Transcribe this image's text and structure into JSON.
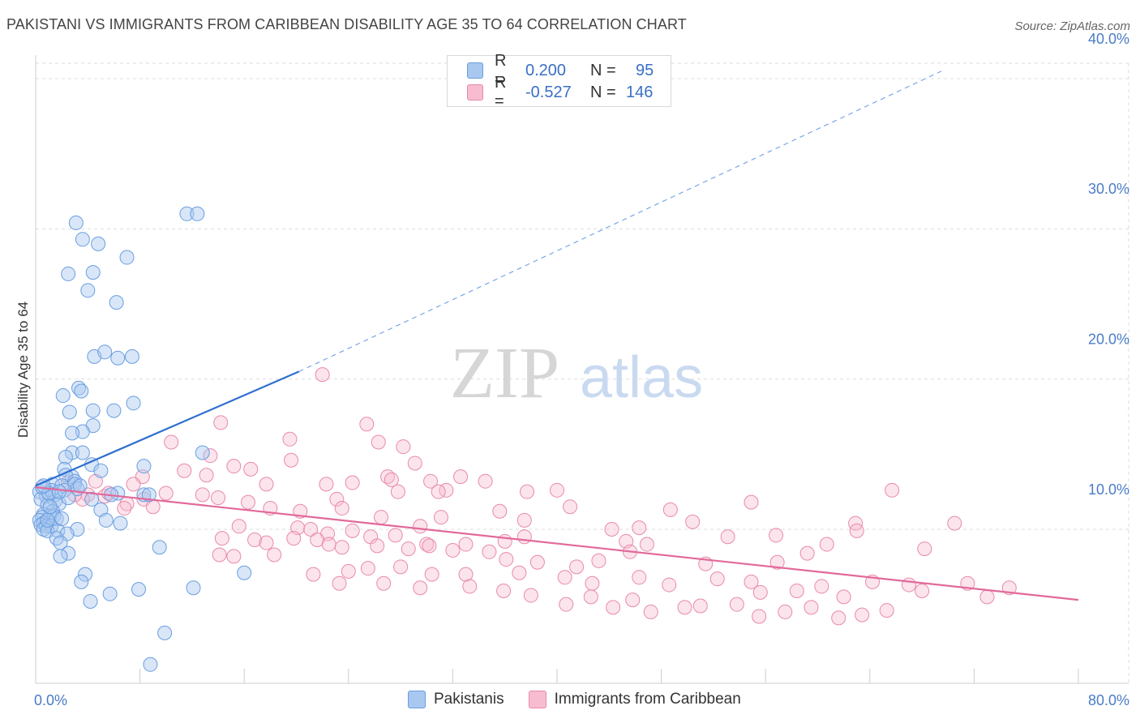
{
  "title": "PAKISTANI VS IMMIGRANTS FROM CARIBBEAN DISABILITY AGE 35 TO 64 CORRELATION CHART",
  "source": "Source: ZipAtlas.com",
  "watermark": {
    "zip": "ZIP",
    "atlas": "atlas"
  },
  "legend_top": [
    {
      "r_label": "R =",
      "r_value": "0.200",
      "n_label": "N =",
      "n_value": "95",
      "color": "#a8c8f0",
      "border": "#6a9ee0"
    },
    {
      "r_label": "R =",
      "r_value": "-0.527",
      "n_label": "N =",
      "n_value": "146",
      "color": "#f7bcd0",
      "border": "#e88aaa"
    }
  ],
  "legend_bottom": [
    {
      "label": "Pakistanis",
      "color": "#a8c8f0",
      "border": "#6a9ee0"
    },
    {
      "label": "Immigrants from Caribbean",
      "color": "#f7bcd0",
      "border": "#e88aaa"
    }
  ],
  "chart_data": {
    "type": "scatter",
    "title": "PAKISTANI VS IMMIGRANTS FROM CARIBBEAN DISABILITY AGE 35 TO 64 CORRELATION CHART",
    "xlabel": "",
    "ylabel": "Disability Age 35 to 64",
    "xlim": [
      0,
      80
    ],
    "ylim": [
      0,
      40
    ],
    "x_ticks": [
      0,
      80
    ],
    "x_tick_labels": [
      "0.0%",
      "80.0%"
    ],
    "y_ticks": [
      10,
      20,
      30,
      40
    ],
    "y_tick_labels": [
      "10.0%",
      "20.0%",
      "30.0%",
      "40.0%"
    ],
    "grid": true,
    "series": [
      {
        "name": "Pakistanis",
        "color": "#6a9ee0",
        "trend": {
          "x0": 0,
          "y0": 12.9,
          "x1": 20.2,
          "y1": 20.5,
          "dashed_to_x": 69.5,
          "dashed_to_y": 40.5
        },
        "points": [
          [
            3.1,
            30.4
          ],
          [
            3.6,
            29.3
          ],
          [
            4.8,
            29.0
          ],
          [
            4.4,
            27.1
          ],
          [
            2.5,
            27.0
          ],
          [
            7.0,
            28.1
          ],
          [
            11.6,
            31.0
          ],
          [
            12.4,
            31.0
          ],
          [
            4.0,
            25.9
          ],
          [
            6.2,
            25.1
          ],
          [
            4.5,
            21.5
          ],
          [
            5.3,
            21.8
          ],
          [
            6.3,
            21.4
          ],
          [
            7.4,
            21.5
          ],
          [
            3.3,
            19.4
          ],
          [
            3.5,
            19.2
          ],
          [
            2.1,
            18.9
          ],
          [
            2.6,
            17.8
          ],
          [
            4.4,
            17.9
          ],
          [
            6.0,
            17.9
          ],
          [
            7.5,
            18.4
          ],
          [
            4.4,
            16.9
          ],
          [
            3.6,
            16.5
          ],
          [
            2.8,
            16.4
          ],
          [
            2.8,
            15.1
          ],
          [
            3.6,
            15.1
          ],
          [
            2.3,
            14.8
          ],
          [
            12.8,
            15.1
          ],
          [
            8.3,
            14.2
          ],
          [
            2.2,
            14.0
          ],
          [
            2.8,
            13.5
          ],
          [
            2.3,
            13.6
          ],
          [
            3.0,
            13.2
          ],
          [
            4.3,
            14.3
          ],
          [
            5.0,
            13.9
          ],
          [
            1.3,
            13.0
          ],
          [
            2.0,
            12.9
          ],
          [
            3.0,
            13.0
          ],
          [
            3.2,
            12.7
          ],
          [
            1.2,
            12.6
          ],
          [
            1.5,
            12.3
          ],
          [
            0.8,
            12.2
          ],
          [
            0.3,
            12.5
          ],
          [
            0.4,
            12.0
          ],
          [
            1.5,
            11.9
          ],
          [
            1.8,
            11.7
          ],
          [
            0.9,
            11.6
          ],
          [
            1.3,
            11.2
          ],
          [
            6.3,
            12.4
          ],
          [
            8.3,
            12.3
          ],
          [
            8.7,
            12.3
          ],
          [
            0.6,
            11.0
          ],
          [
            1.1,
            10.9
          ],
          [
            0.5,
            10.8
          ],
          [
            1.4,
            10.9
          ],
          [
            1.6,
            10.7
          ],
          [
            0.3,
            10.6
          ],
          [
            0.6,
            10.4
          ],
          [
            0.4,
            10.3
          ],
          [
            0.8,
            10.2
          ],
          [
            1.2,
            10.2
          ],
          [
            0.6,
            10.0
          ],
          [
            0.9,
            9.9
          ],
          [
            1.7,
            9.9
          ],
          [
            3.2,
            10.0
          ],
          [
            2.4,
            9.7
          ],
          [
            1.6,
            9.4
          ],
          [
            1.9,
            9.1
          ],
          [
            5.0,
            11.3
          ],
          [
            5.4,
            10.6
          ],
          [
            6.5,
            10.4
          ],
          [
            4.3,
            12.0
          ],
          [
            2.5,
            8.4
          ],
          [
            1.9,
            8.2
          ],
          [
            9.5,
            8.8
          ],
          [
            3.8,
            7.0
          ],
          [
            3.5,
            6.5
          ],
          [
            12.1,
            6.1
          ],
          [
            16.0,
            7.1
          ],
          [
            7.9,
            6.0
          ],
          [
            5.7,
            5.7
          ],
          [
            4.2,
            5.2
          ],
          [
            9.9,
            3.1
          ],
          [
            8.8,
            1.0
          ],
          [
            0.5,
            12.8
          ],
          [
            2.2,
            12.6
          ],
          [
            1.0,
            12.4
          ],
          [
            3.4,
            12.9
          ],
          [
            2.5,
            12.1
          ],
          [
            1.1,
            11.5
          ],
          [
            0.9,
            10.6
          ],
          [
            2.0,
            10.7
          ],
          [
            5.8,
            12.3
          ],
          [
            1.8,
            12.5
          ],
          [
            0.6,
            12.9
          ]
        ]
      },
      {
        "name": "Immigrants from Caribbean",
        "color": "#e88aaa",
        "trend": {
          "x0": 0,
          "y0": 12.8,
          "x1": 80,
          "y1": 5.3
        },
        "points": [
          [
            22.0,
            20.3
          ],
          [
            14.2,
            17.1
          ],
          [
            25.4,
            17.0
          ],
          [
            19.5,
            16.0
          ],
          [
            26.3,
            15.8
          ],
          [
            28.2,
            15.5
          ],
          [
            10.4,
            15.8
          ],
          [
            13.4,
            14.9
          ],
          [
            19.6,
            14.6
          ],
          [
            29.1,
            14.4
          ],
          [
            15.2,
            14.2
          ],
          [
            16.5,
            14.0
          ],
          [
            11.4,
            13.9
          ],
          [
            8.2,
            13.5
          ],
          [
            13.1,
            13.6
          ],
          [
            27.0,
            13.5
          ],
          [
            27.3,
            13.3
          ],
          [
            30.3,
            13.2
          ],
          [
            32.6,
            13.5
          ],
          [
            34.5,
            13.2
          ],
          [
            22.3,
            13.0
          ],
          [
            24.3,
            13.1
          ],
          [
            7.5,
            13.0
          ],
          [
            4.6,
            13.2
          ],
          [
            2.5,
            13.1
          ],
          [
            17.7,
            13.0
          ],
          [
            23.1,
            12.0
          ],
          [
            27.8,
            12.5
          ],
          [
            31.5,
            12.6
          ],
          [
            30.9,
            12.5
          ],
          [
            37.7,
            12.5
          ],
          [
            40.0,
            12.6
          ],
          [
            65.7,
            12.6
          ],
          [
            16.3,
            11.8
          ],
          [
            14.0,
            12.1
          ],
          [
            10.0,
            12.4
          ],
          [
            12.8,
            12.3
          ],
          [
            8.3,
            12.0
          ],
          [
            7.0,
            11.7
          ],
          [
            9.0,
            11.5
          ],
          [
            6.8,
            11.4
          ],
          [
            5.3,
            12.2
          ],
          [
            4.0,
            12.3
          ],
          [
            5.6,
            12.4
          ],
          [
            3.6,
            12.0
          ],
          [
            3.0,
            12.3
          ],
          [
            18.0,
            11.4
          ],
          [
            20.3,
            11.2
          ],
          [
            23.5,
            11.4
          ],
          [
            26.5,
            10.8
          ],
          [
            29.5,
            10.2
          ],
          [
            31.1,
            10.8
          ],
          [
            35.6,
            11.2
          ],
          [
            37.5,
            10.6
          ],
          [
            41.0,
            11.5
          ],
          [
            48.7,
            11.3
          ],
          [
            54.9,
            11.8
          ],
          [
            56.8,
            9.6
          ],
          [
            62.9,
            10.4
          ],
          [
            70.5,
            10.4
          ],
          [
            44.2,
            10.0
          ],
          [
            46.3,
            10.1
          ],
          [
            50.4,
            10.5
          ],
          [
            15.6,
            10.2
          ],
          [
            20.1,
            10.1
          ],
          [
            21.1,
            10.0
          ],
          [
            22.4,
            9.7
          ],
          [
            24.3,
            9.9
          ],
          [
            25.7,
            9.5
          ],
          [
            27.6,
            9.6
          ],
          [
            30.0,
            9.0
          ],
          [
            33.0,
            9.0
          ],
          [
            36.0,
            9.2
          ],
          [
            37.5,
            9.5
          ],
          [
            45.3,
            9.2
          ],
          [
            46.9,
            9.0
          ],
          [
            53.1,
            9.5
          ],
          [
            60.7,
            9.0
          ],
          [
            14.3,
            9.4
          ],
          [
            16.8,
            9.3
          ],
          [
            17.7,
            9.1
          ],
          [
            19.8,
            9.4
          ],
          [
            21.6,
            9.3
          ],
          [
            22.5,
            9.0
          ],
          [
            23.5,
            8.8
          ],
          [
            26.2,
            8.9
          ],
          [
            28.6,
            8.7
          ],
          [
            30.2,
            8.9
          ],
          [
            32.0,
            8.6
          ],
          [
            34.8,
            8.5
          ],
          [
            36.1,
            8.0
          ],
          [
            38.5,
            7.8
          ],
          [
            41.5,
            7.5
          ],
          [
            43.2,
            7.9
          ],
          [
            45.6,
            8.5
          ],
          [
            51.4,
            7.7
          ],
          [
            56.9,
            7.8
          ],
          [
            59.2,
            8.4
          ],
          [
            63.0,
            9.9
          ],
          [
            68.2,
            8.7
          ],
          [
            14.1,
            8.3
          ],
          [
            15.2,
            8.2
          ],
          [
            18.3,
            8.3
          ],
          [
            24.0,
            7.2
          ],
          [
            25.5,
            7.4
          ],
          [
            28.0,
            7.5
          ],
          [
            30.4,
            7.0
          ],
          [
            33.0,
            7.0
          ],
          [
            37.1,
            7.1
          ],
          [
            40.6,
            6.8
          ],
          [
            42.7,
            6.4
          ],
          [
            46.3,
            6.8
          ],
          [
            48.6,
            6.3
          ],
          [
            52.3,
            6.7
          ],
          [
            54.9,
            6.5
          ],
          [
            55.6,
            5.8
          ],
          [
            58.4,
            5.9
          ],
          [
            60.3,
            6.2
          ],
          [
            62.0,
            5.5
          ],
          [
            64.2,
            6.5
          ],
          [
            67.0,
            6.3
          ],
          [
            21.3,
            7.0
          ],
          [
            23.3,
            6.4
          ],
          [
            26.7,
            6.4
          ],
          [
            29.5,
            6.1
          ],
          [
            33.3,
            6.2
          ],
          [
            35.9,
            5.9
          ],
          [
            38.0,
            5.6
          ],
          [
            40.7,
            5.0
          ],
          [
            42.6,
            5.5
          ],
          [
            44.3,
            4.8
          ],
          [
            45.8,
            5.3
          ],
          [
            47.2,
            4.5
          ],
          [
            49.8,
            4.8
          ],
          [
            51.0,
            4.9
          ],
          [
            53.8,
            5.0
          ],
          [
            55.5,
            4.2
          ],
          [
            57.5,
            4.5
          ],
          [
            59.5,
            4.8
          ],
          [
            61.6,
            4.1
          ],
          [
            63.4,
            4.3
          ],
          [
            65.3,
            4.6
          ],
          [
            68.0,
            5.9
          ],
          [
            71.5,
            6.4
          ],
          [
            73.0,
            5.5
          ],
          [
            74.7,
            6.1
          ]
        ]
      }
    ]
  }
}
